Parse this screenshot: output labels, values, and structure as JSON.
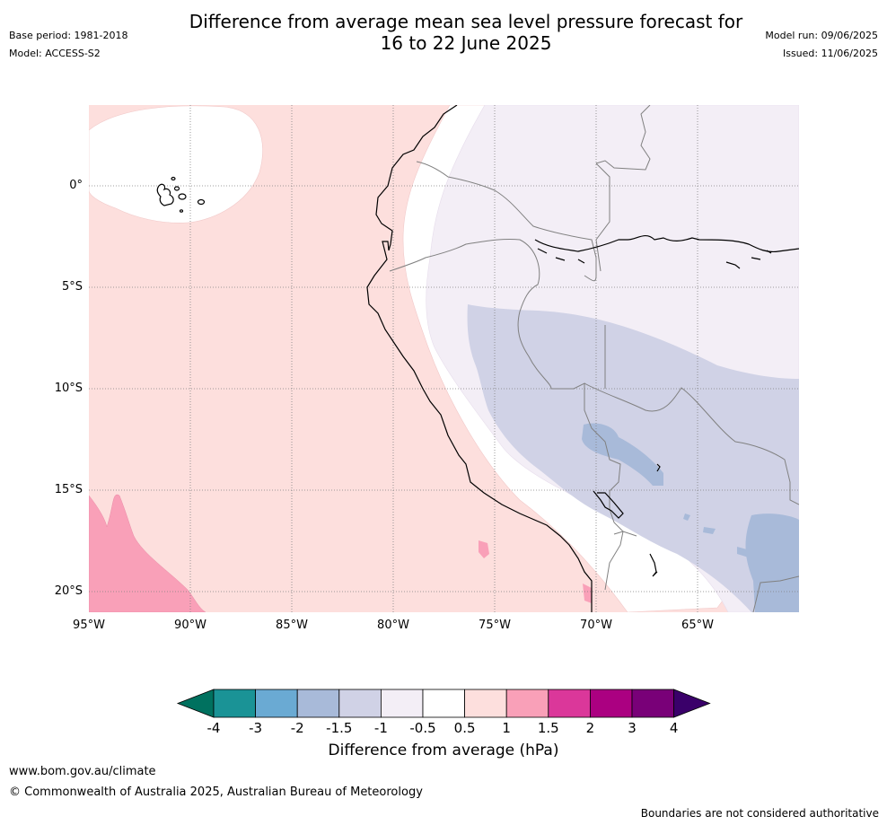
{
  "header": {
    "title_line1": "Difference from average mean sea level pressure forecast for",
    "title_line2": "16 to 22 June 2025",
    "base_period": "Base period: 1981-2018",
    "model": "Model: ACCESS-S2",
    "model_run": "Model run: 09/06/2025",
    "issued": "Issued: 11/06/2025"
  },
  "map": {
    "lat_ticks": [
      "0°",
      "5°S",
      "10°S",
      "15°S",
      "20°S"
    ],
    "lon_ticks": [
      "95°W",
      "90°W",
      "85°W",
      "80°W",
      "75°W",
      "70°W",
      "65°W"
    ],
    "extent": {
      "lon_min": -95,
      "lon_max": -60,
      "lat_min": -21,
      "lat_max": 4
    },
    "colors": {
      "ocean_pos_light": "#fddfdd",
      "near_zero": "#ffffff",
      "neg_light": "#f3eef6",
      "neg_mid": "#d0d2e6",
      "neg_strong": "#a8bad9",
      "pos_mid": "#f9a0b8",
      "coast": "#000000",
      "border": "#808080",
      "grid": "#808080"
    }
  },
  "colorbar": {
    "ticks": [
      "-4",
      "-3",
      "-2",
      "-1.5",
      "-1",
      "-0.5",
      "0.5",
      "1",
      "1.5",
      "2",
      "3",
      "4"
    ],
    "colors": [
      "#00715f",
      "#1a9396",
      "#6aaad3",
      "#a8bad9",
      "#d0d2e6",
      "#f3eef6",
      "#ffffff",
      "#fddfdd",
      "#f9a0b8",
      "#db379a",
      "#ab0081",
      "#790078",
      "#3a006a"
    ],
    "label": "Difference from average (hPa)"
  },
  "footer": {
    "url": "www.bom.gov.au/climate",
    "copyright": "© Commonwealth of Australia 2025, Australian Bureau of Meteorology",
    "disclaimer": "Boundaries are not considered authoritative"
  }
}
